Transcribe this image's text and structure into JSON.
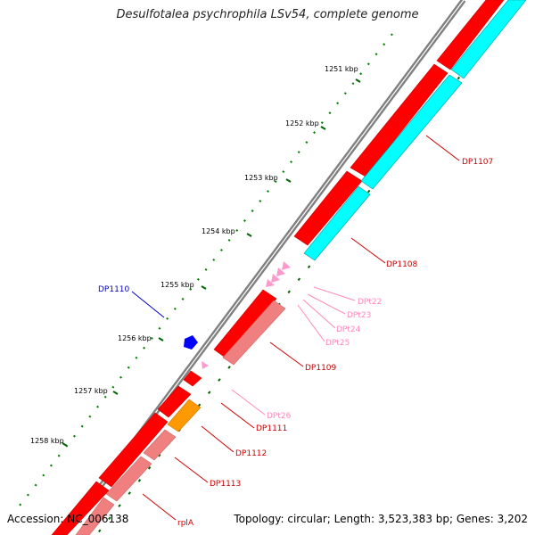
{
  "title": "Desulfotalea psychrophila LSv54, complete genome",
  "footer": {
    "accession": "Accession: NC_006138",
    "summary": "Topology: circular; Length: 3,523,383 bp; Genes: 3,202"
  },
  "scale_labels": [
    "1251 kbp",
    "1252 kbp",
    "1253 kbp",
    "1254 kbp",
    "1255 kbp",
    "1256 kbp",
    "1257 kbp",
    "1258 kbp"
  ],
  "gene_labels": {
    "dp1107": "DP1107",
    "dp1108": "DP1108",
    "dp1109": "DP1109",
    "dp1110": "DP1110",
    "dp1111": "DP1111",
    "dp1112": "DP1112",
    "dp1113": "DP1113",
    "rpla": "rplA",
    "dpt22": "DPt22",
    "dpt23": "DPt23",
    "dpt24": "DPt24",
    "dpt25": "DPt25",
    "dpt26": "DPt26"
  },
  "colors": {
    "cds": "#ff0000",
    "cds_light": "#f08080",
    "cds_other_strand": "#00ffff",
    "trna": "#ff99cc",
    "orange_gene": "#ff9900",
    "blue_gene": "#0000ff",
    "backbone": "#808080",
    "tick_major": "#006400",
    "tick_minor": "#008000",
    "label_red": "#cc0000",
    "label_pink": "#ff88bb",
    "label_blue": "#0000cc"
  }
}
